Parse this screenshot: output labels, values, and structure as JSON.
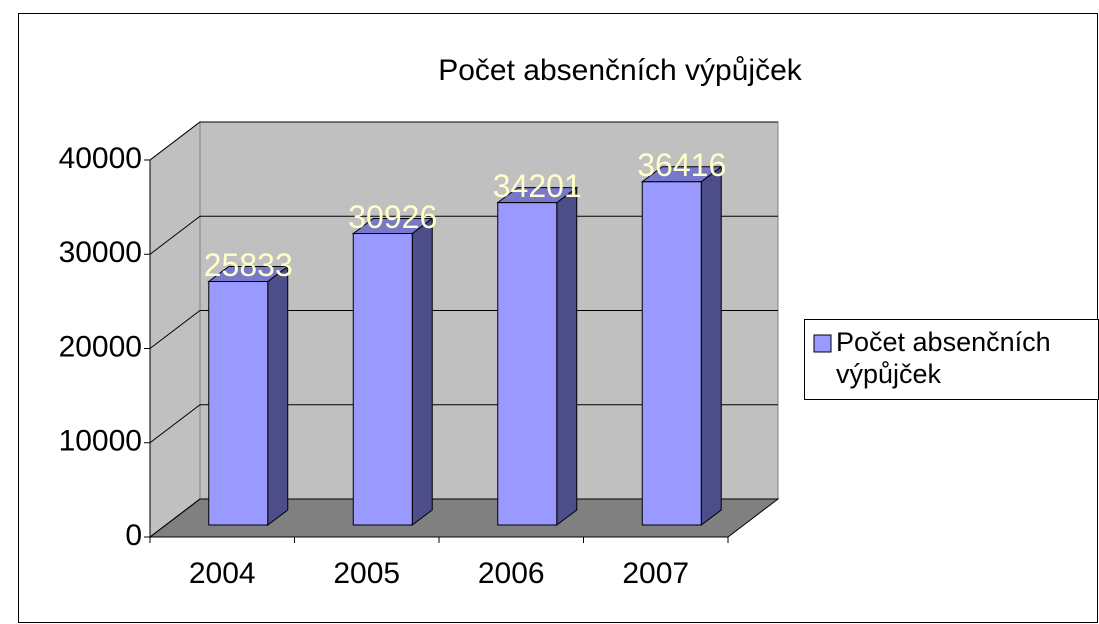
{
  "chart_data": {
    "type": "bar",
    "title": "Počet absenčních výpůjček",
    "categories": [
      "2004",
      "2005",
      "2006",
      "2007"
    ],
    "series": [
      {
        "name": "Počet absenčních výpůjček",
        "color": "#9999ff",
        "values": [
          25833,
          30926,
          34201,
          36416
        ]
      }
    ],
    "ylim": [
      0,
      40000
    ],
    "yticks": [
      0,
      10000,
      20000,
      30000,
      40000
    ],
    "grid": true,
    "legend": "right",
    "data_labels": true
  }
}
